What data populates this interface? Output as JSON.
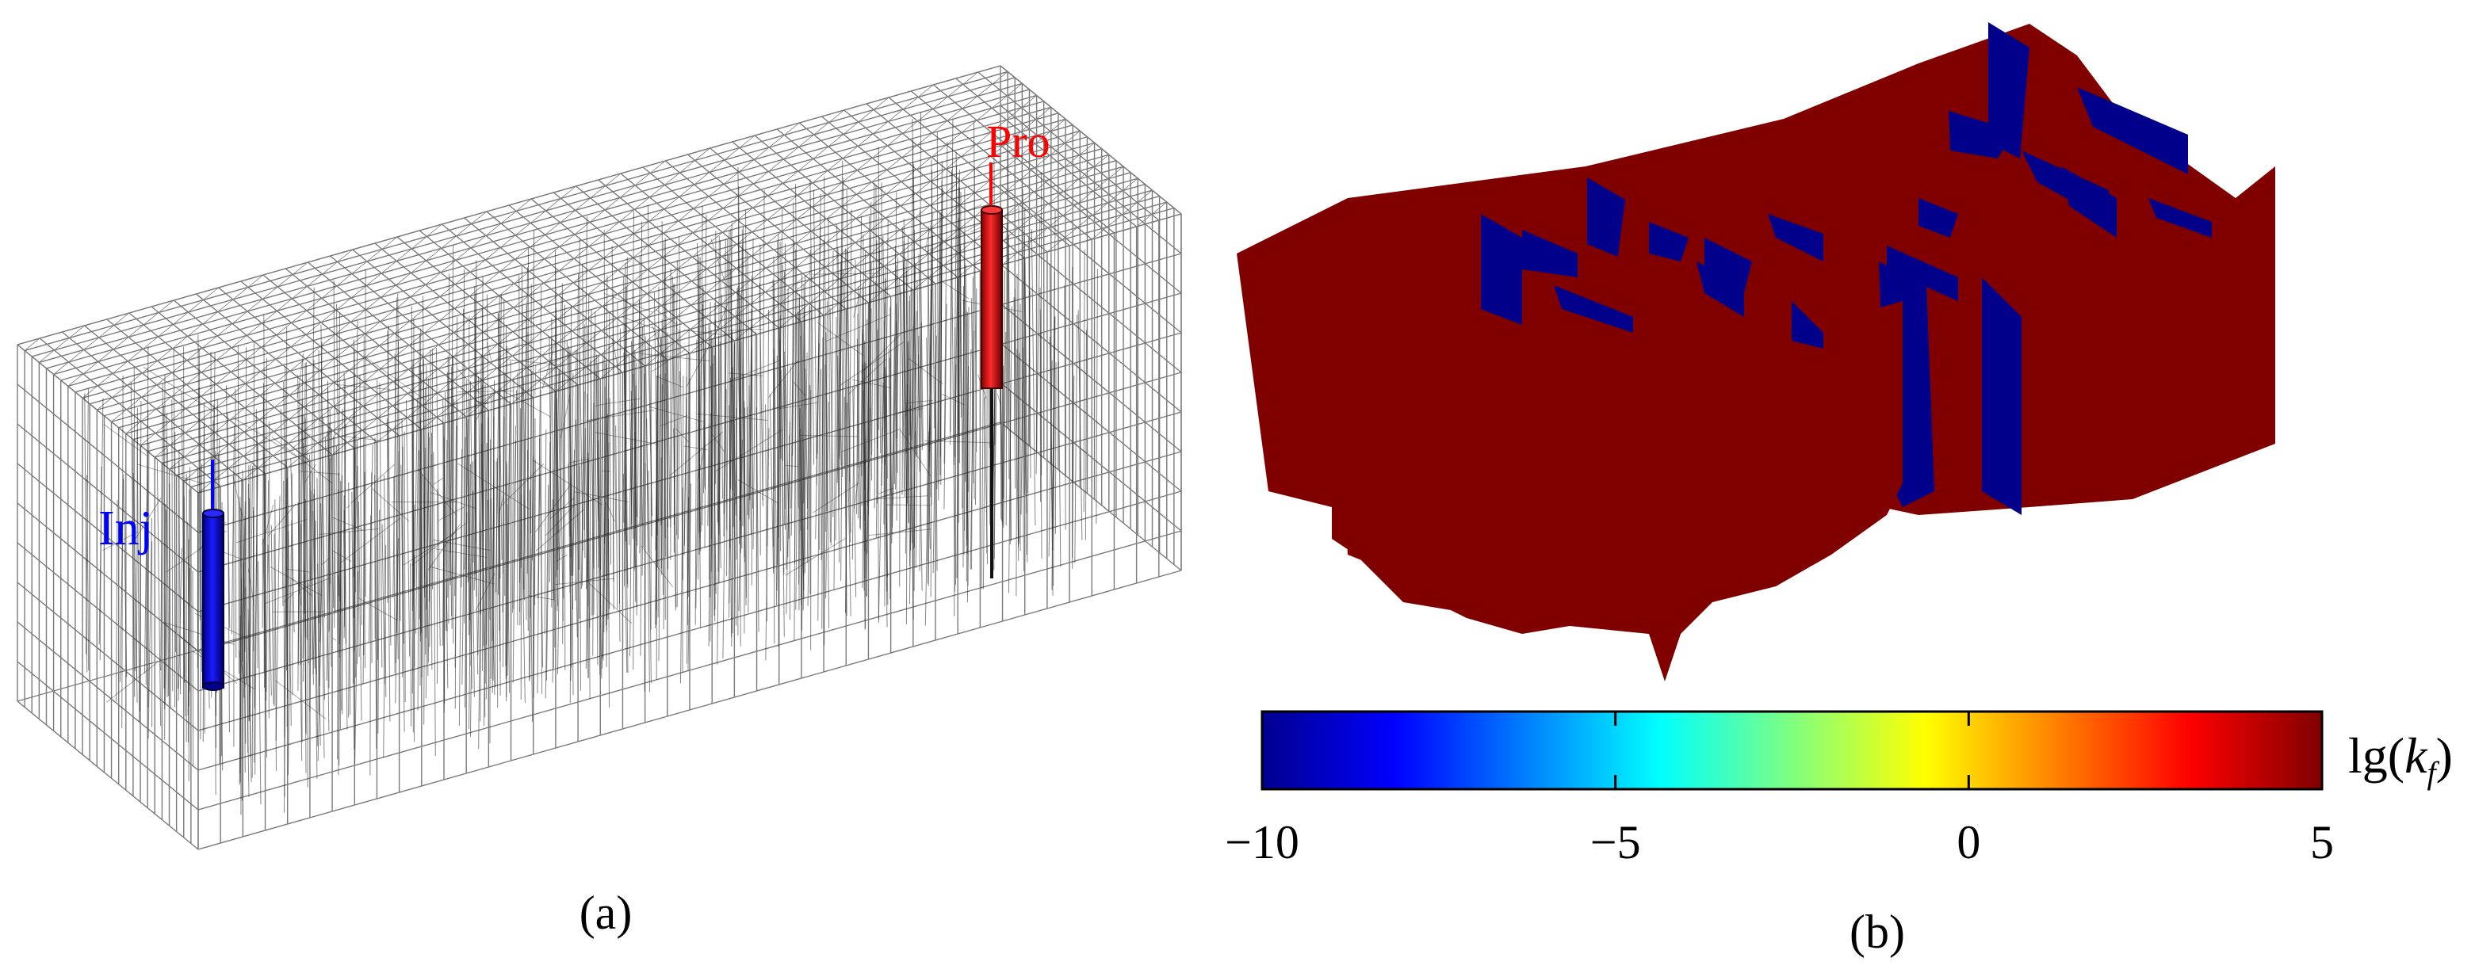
{
  "panel_a": {
    "caption": "(a)",
    "wells": {
      "injector": {
        "label": "Inj",
        "color": "#0000ff"
      },
      "producer": {
        "label": "Pro",
        "color": "#ff0000"
      }
    },
    "grid_color": "#7a7a7a",
    "fracture_color": "#222222"
  },
  "panel_b": {
    "caption": "(b)",
    "fracture_colors": {
      "high": "#800000",
      "low": "#00008b"
    },
    "colorbar": {
      "label_prefix": "lg(",
      "label_var": "k",
      "label_sub": "f",
      "label_suffix": ")",
      "min": -10,
      "max": 5,
      "ticks": [
        "−10",
        "−5",
        "0",
        "5"
      ],
      "colormap": "jet"
    }
  }
}
